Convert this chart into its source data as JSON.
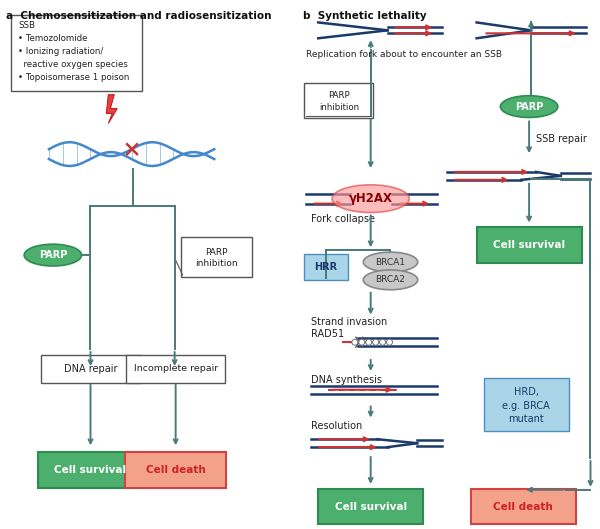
{
  "title_a": "a  Chemosensitization and radiosensitization",
  "title_b": "b  Synthetic lethality",
  "bg_color": "#ffffff",
  "text_color": "#333333",
  "dark_blue": "#1a3a6b",
  "red": "#cc3333",
  "green_fill": "#4caf6e",
  "salmon_fill": "#f4a18a",
  "light_blue_fill": "#aad4e8",
  "teal_flow": "#4a7a7a",
  "ssb_box_text": "SSB\n• Temozolomide\n• Ionizing radiation/\n  reactive oxygen species\n• Topoisomerase 1 poison",
  "parp_label": "PARP",
  "parp_inhibition_label": "PARP\ninhibition",
  "hrr_label": "HRR",
  "brca1_label": "BRCA1",
  "brca2_label": "BRCA2",
  "dna_repair_label": "DNA repair",
  "incomplete_repair_label": "Incomplete repair",
  "cell_survival_label": "Cell survival",
  "cell_death_label": "Cell death",
  "fork_label": "Replication fork about to encounter an SSB",
  "fork_collapse_label": "Fork collapse",
  "ssb_repair_label": "SSB repair",
  "strand_invasion_label": "Strand invasion",
  "rad51_label": "RAD51",
  "dna_synthesis_label": "DNA synthesis",
  "resolution_label": "Resolution",
  "hrd_label": "HRD,\ne.g. BRCA\nmutant",
  "yh2ax_label": "γH2AX"
}
